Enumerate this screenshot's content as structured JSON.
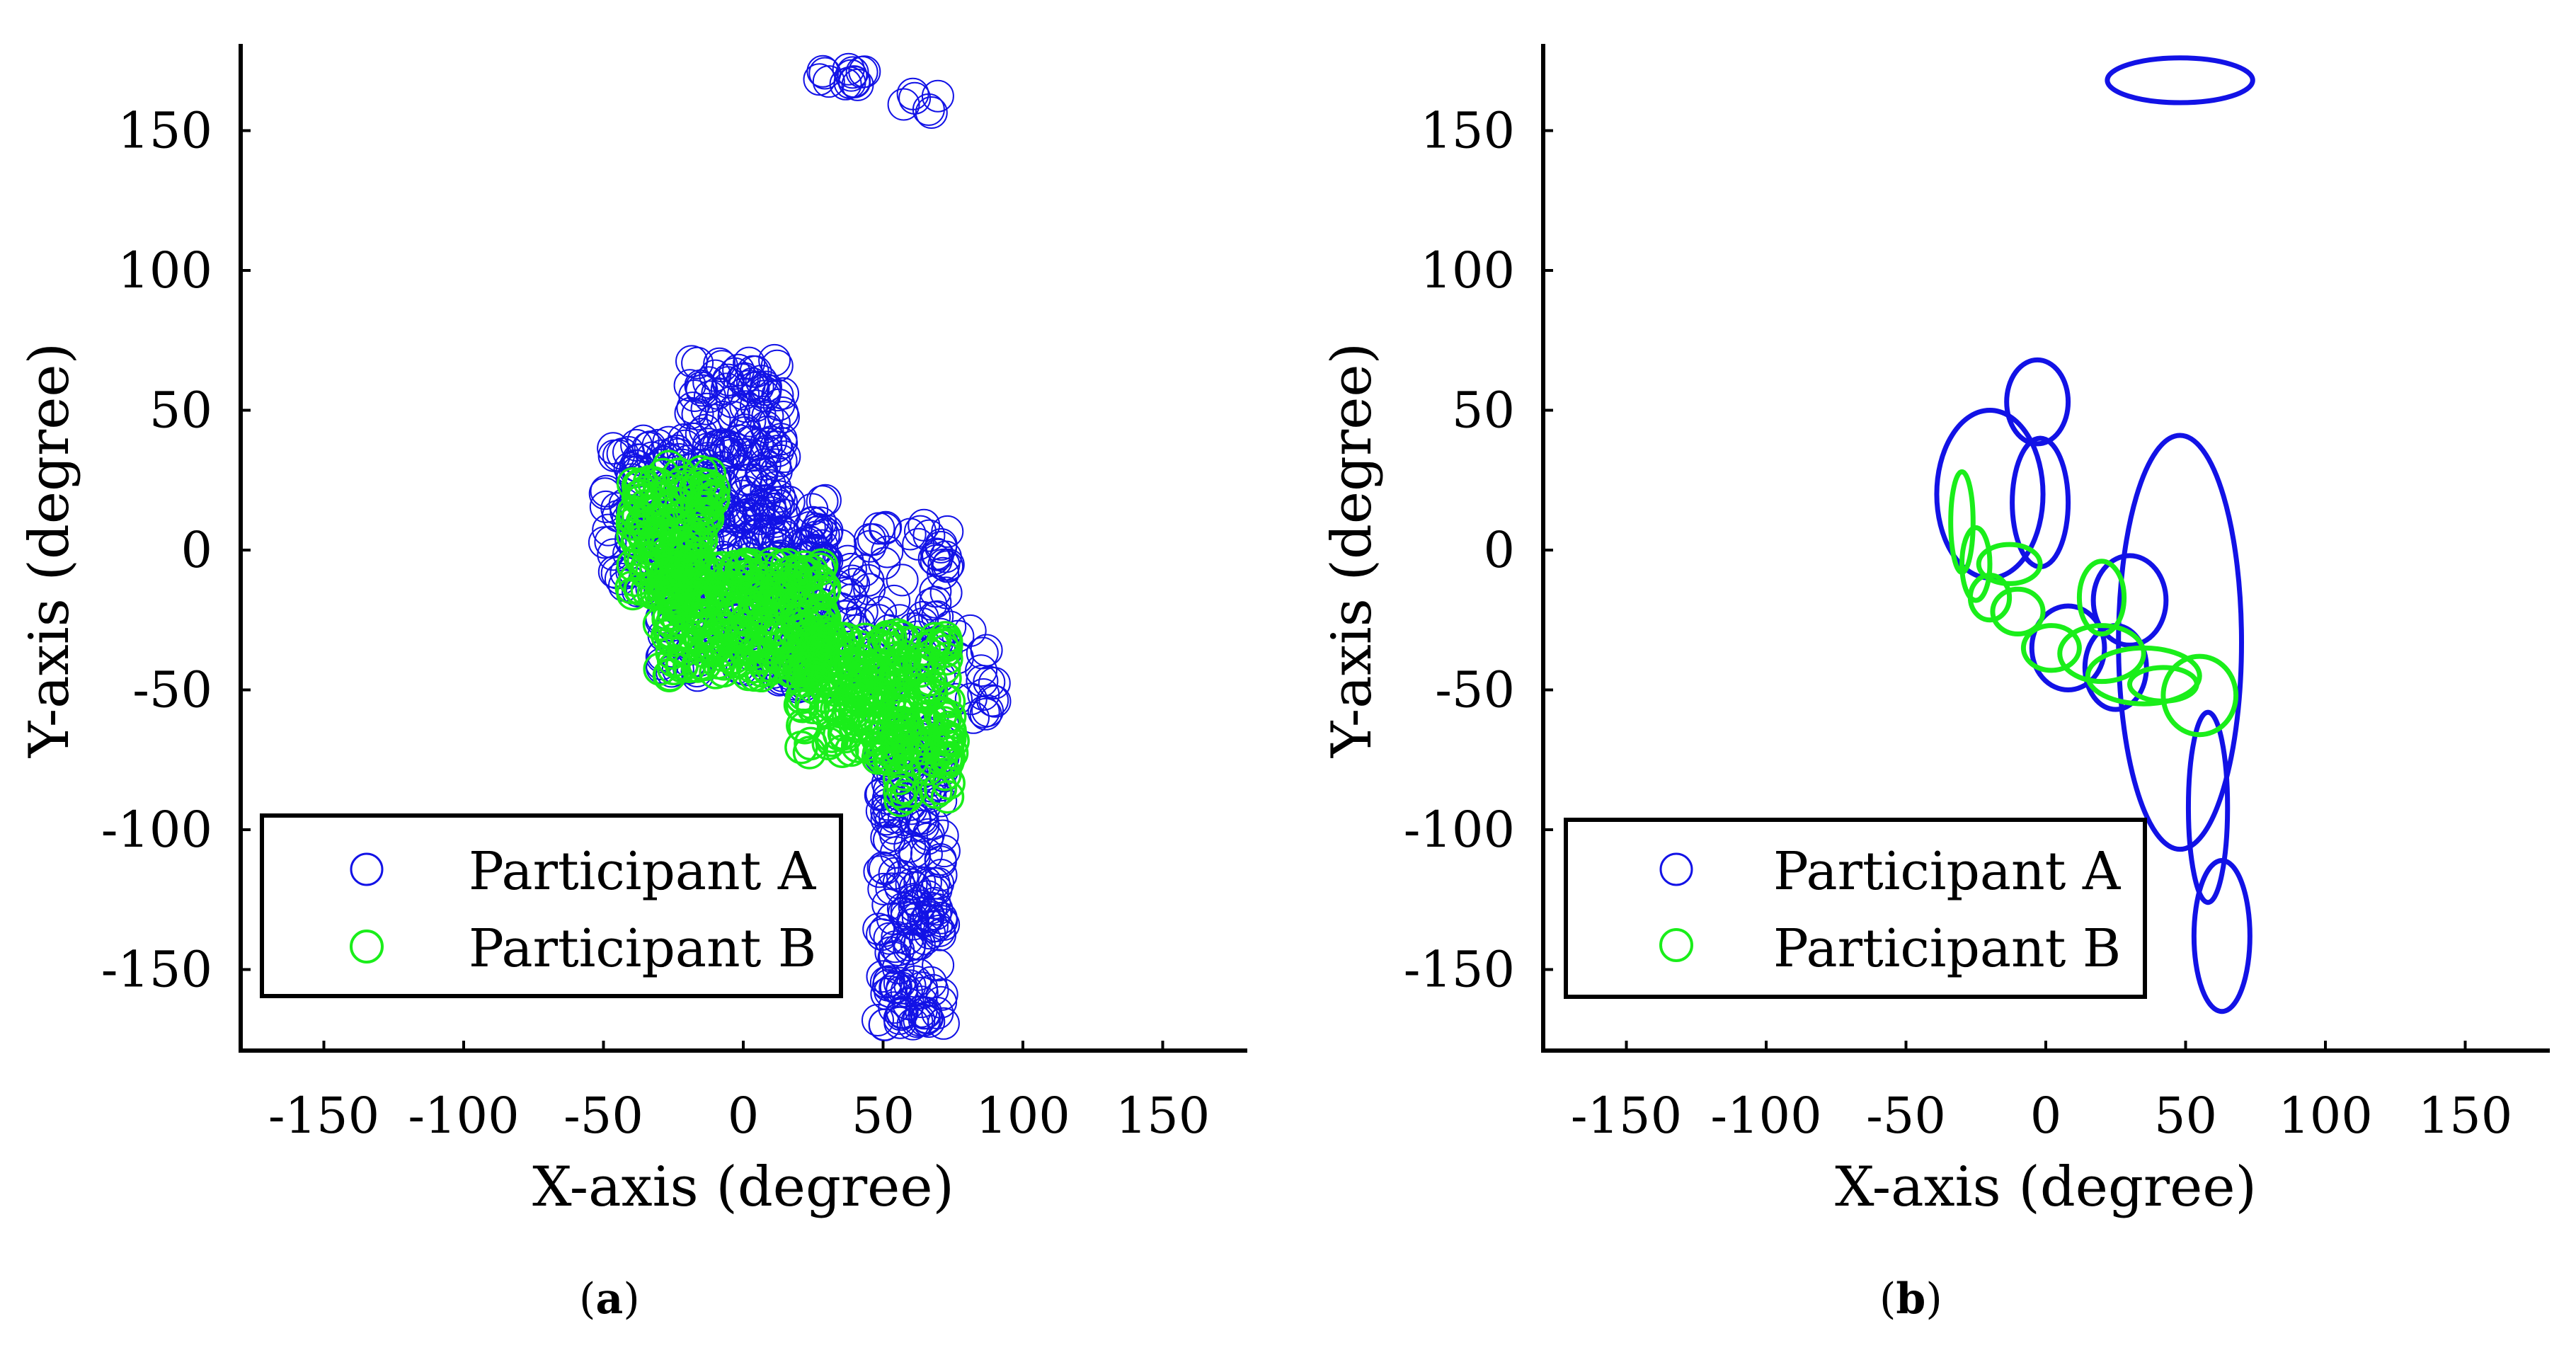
{
  "chart_data": [
    {
      "id": "a",
      "type": "scatter",
      "panel_label": "a",
      "xlabel": "X-axis (degree)",
      "ylabel": "Y-axis (degree)",
      "xlim": [
        -180,
        180
      ],
      "ylim": [
        -180,
        180
      ],
      "xticks": [
        -150,
        -100,
        -50,
        0,
        50,
        100,
        150
      ],
      "yticks": [
        150,
        100,
        50,
        0,
        -50,
        -100,
        -150
      ],
      "grid": false,
      "legend_position": "bottom-left",
      "marker": "open-circle",
      "series": [
        {
          "name": "Participant A",
          "color": "#1212e6",
          "clusters": [
            {
              "x": [
                25,
                45
              ],
              "y": [
                165,
                172
              ],
              "n": 14
            },
            {
              "x": [
                55,
                70
              ],
              "y": [
                153,
                173
              ],
              "n": 6
            },
            {
              "x": [
                -50,
                -10
              ],
              "y": [
                -15,
                40
              ],
              "n": 120
            },
            {
              "x": [
                -20,
                15
              ],
              "y": [
                10,
                68
              ],
              "n": 150
            },
            {
              "x": [
                -30,
                30
              ],
              "y": [
                -45,
                20
              ],
              "n": 220
            },
            {
              "x": [
                10,
                75
              ],
              "y": [
                -50,
                10
              ],
              "n": 160
            },
            {
              "x": [
                75,
                90
              ],
              "y": [
                -60,
                -25
              ],
              "n": 18
            },
            {
              "x": [
                48,
                72
              ],
              "y": [
                -170,
                -60
              ],
              "n": 200
            }
          ]
        },
        {
          "name": "Participant B",
          "color": "#1aee1a",
          "clusters": [
            {
              "x": [
                -40,
                -10
              ],
              "y": [
                -20,
                30
              ],
              "n": 140
            },
            {
              "x": [
                -30,
                30
              ],
              "y": [
                -45,
                -5
              ],
              "n": 260
            },
            {
              "x": [
                20,
                75
              ],
              "y": [
                -75,
                -30
              ],
              "n": 220
            },
            {
              "x": [
                55,
                75
              ],
              "y": [
                -90,
                -60
              ],
              "n": 30
            }
          ]
        }
      ]
    },
    {
      "id": "b",
      "type": "ellipse",
      "panel_label": "b",
      "xlabel": "X-axis (degree)",
      "ylabel": "Y-axis (degree)",
      "xlim": [
        -180,
        180
      ],
      "ylim": [
        -180,
        180
      ],
      "xticks": [
        -150,
        -100,
        -50,
        0,
        50,
        100,
        150
      ],
      "yticks": [
        150,
        100,
        50,
        0,
        -50,
        -100,
        -150
      ],
      "grid": false,
      "legend_position": "bottom-left",
      "series": [
        {
          "name": "Participant A",
          "color": "#1212e6",
          "ellipses": [
            {
              "cx": 48,
              "cy": 168,
              "rx": 26,
              "ry": 8
            },
            {
              "cx": -3,
              "cy": 53,
              "rx": 11,
              "ry": 15
            },
            {
              "cx": -20,
              "cy": 20,
              "rx": 19,
              "ry": 30
            },
            {
              "cx": -2,
              "cy": 17,
              "rx": 10,
              "ry": 23
            },
            {
              "cx": 48,
              "cy": -33,
              "rx": 22,
              "ry": 74
            },
            {
              "cx": 30,
              "cy": -18,
              "rx": 13,
              "ry": 16
            },
            {
              "cx": 8,
              "cy": -35,
              "rx": 13,
              "ry": 15
            },
            {
              "cx": 25,
              "cy": -42,
              "rx": 11,
              "ry": 15
            },
            {
              "cx": 58,
              "cy": -92,
              "rx": 7,
              "ry": 34
            },
            {
              "cx": 63,
              "cy": -138,
              "rx": 10,
              "ry": 27
            }
          ]
        },
        {
          "name": "Participant B",
          "color": "#1aee1a",
          "ellipses": [
            {
              "cx": -30,
              "cy": 10,
              "rx": 4,
              "ry": 18
            },
            {
              "cx": -25,
              "cy": -5,
              "rx": 5,
              "ry": 13
            },
            {
              "cx": -13,
              "cy": -5,
              "rx": 11,
              "ry": 7
            },
            {
              "cx": -20,
              "cy": -17,
              "rx": 7,
              "ry": 8
            },
            {
              "cx": -10,
              "cy": -22,
              "rx": 9,
              "ry": 8
            },
            {
              "cx": 2,
              "cy": -35,
              "rx": 10,
              "ry": 8
            },
            {
              "cx": 20,
              "cy": -17,
              "rx": 8,
              "ry": 13
            },
            {
              "cx": 20,
              "cy": -37,
              "rx": 15,
              "ry": 10
            },
            {
              "cx": 35,
              "cy": -45,
              "rx": 20,
              "ry": 10
            },
            {
              "cx": 55,
              "cy": -52,
              "rx": 13,
              "ry": 14
            },
            {
              "cx": 42,
              "cy": -48,
              "rx": 12,
              "ry": 6
            }
          ]
        }
      ]
    }
  ]
}
